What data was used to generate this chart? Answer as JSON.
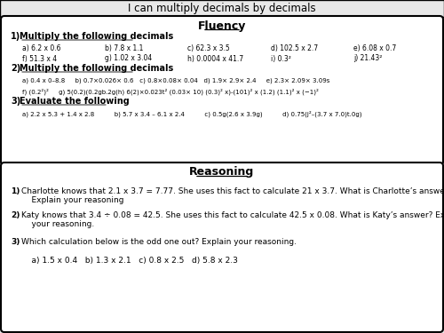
{
  "title": "I can multiply decimals by decimals",
  "background_color": "#e8e8e8",
  "box_color": "#ffffff",
  "fluency_title": "Fluency",
  "reasoning_title": "Reasoning",
  "section1_title": "Multiply the following decimals",
  "section1_row1": [
    "a) 6.2 x 0.6",
    "b) 7.8 x 1.1",
    "c) 62.3 x 3.5",
    "d) 102.5 x 2.7",
    "e) 6.08 x 0.7"
  ],
  "section1_row2": [
    "f) 51.3 x 4",
    "g) 1.02 x 3.04",
    "h) 0.0004 x 41.7",
    "i) 0.3²",
    "j) 21.43²"
  ],
  "section2_title": "Multiply the following decimals",
  "section2_row1": "a) 0.4 x 0–8.8     b) 0.7×0.026× 0.6   c) 0.8×0.08× 0.04   d) 1.9× 2.9× 2.4     e) 2.3× 2.09× 3.09s",
  "section2_row2": "f) (0.2²)²     g) 5(0.2)(0.2gb.2g(h) 6(2)×0.023t² (0.03× 10) (0.3)² x)-(101)² x (1.2) (1.1)² x (−1)²",
  "section3_title": "Evaluate the following",
  "section3_row1": "a) 2.2 x 5.3 + 1.4 x 2.8          b) 5.7 x 3.4 – 6.1 x 2.4          c) 0.5g(2.6 x 3.9g)          d) 0.75(j²–(3.7 x 7.0)t.0g)",
  "reasoning_items": [
    "Charlotte knows that 2.1 x 3.7 = 7.77. She uses this fact to calculate 21 x 3.7. What is Charlotte’s answer?\n    Explain your reasoning",
    "Katy knows that 3.4 ÷ 0.08 = 42.5. She uses this fact to calculate 42.5 x 0.08. What is Katy’s answer? Explain\n    your reasoning.",
    "Which calculation below is the odd one out? Explain your reasoning.\n\n    a) 1.5 x 0.4   b) 1.3 x 2.1   c) 0.8 x 2.5   d) 5.8 x 2.3"
  ]
}
